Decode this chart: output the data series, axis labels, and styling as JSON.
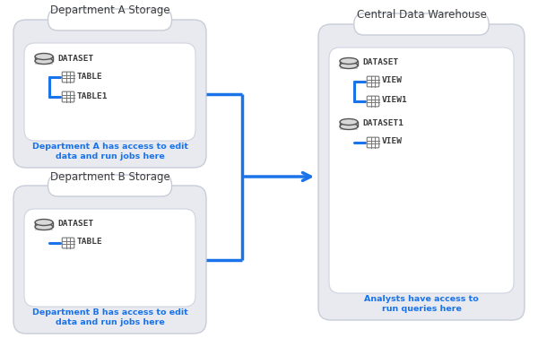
{
  "bg_color": "#ffffff",
  "box_bg": "#e8eaf0",
  "inner_bg": "#ffffff",
  "blue": "#1a73e8",
  "dark_text": "#3c3c3c",
  "title_fontsize": 8.5,
  "label_fontsize": 6.8,
  "caption_fontsize": 6.8,
  "dept_a": {
    "title": "Department A Storage",
    "caption": "Department A has access to edit\ndata and run jobs here",
    "dataset": "DATASET",
    "children": [
      "TABLE",
      "TABLE1"
    ]
  },
  "dept_b": {
    "title": "Department B Storage",
    "caption": "Department B has access to edit\ndata and run jobs here",
    "dataset": "DATASET",
    "children": [
      "TABLE"
    ]
  },
  "central": {
    "title": "Central Data Warehouse",
    "caption": "Analysts have access to\nrun queries here",
    "datasets": [
      {
        "name": "DATASET",
        "children": [
          "VIEW",
          "VIEW1"
        ]
      },
      {
        "name": "DATASET1",
        "children": [
          "VIEW"
        ]
      }
    ]
  }
}
